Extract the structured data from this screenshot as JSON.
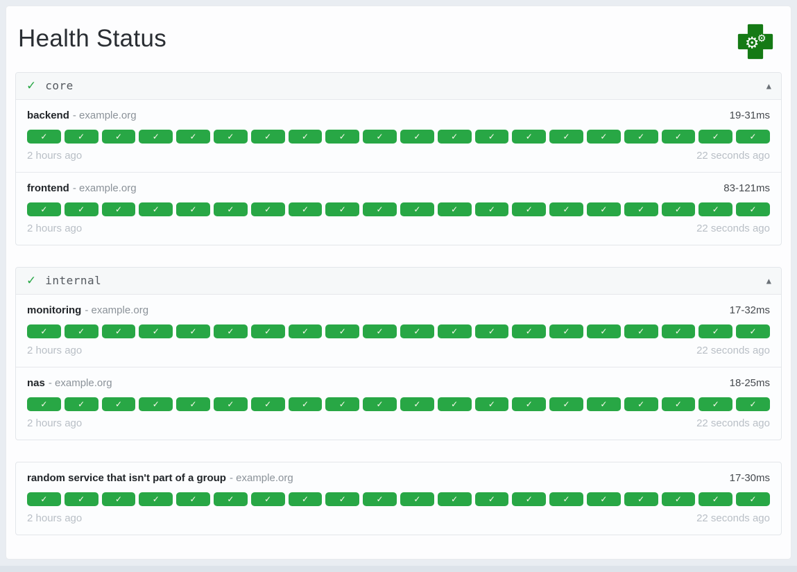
{
  "page": {
    "title": "Health Status"
  },
  "icons": {
    "logo": "health-cross-gears",
    "group_status": "✓",
    "collapse": "▲",
    "check": "✓",
    "gear": "⚙"
  },
  "colors": {
    "success_green": "#28a745",
    "logo_green": "#157a15",
    "page_background": "#e9edf2",
    "group_header_background": "#f6f8f9",
    "muted_text": "#b9bfc6"
  },
  "groups": [
    {
      "label": "core",
      "services": [
        {
          "name": "backend",
          "host": "- example.org",
          "response_time": "19-31ms",
          "oldest": "2 hours ago",
          "newest": "22 seconds ago",
          "checks": 20
        },
        {
          "name": "frontend",
          "host": "- example.org",
          "response_time": "83-121ms",
          "oldest": "2 hours ago",
          "newest": "22 seconds ago",
          "checks": 20
        }
      ]
    },
    {
      "label": "internal",
      "services": [
        {
          "name": "monitoring",
          "host": "- example.org",
          "response_time": "17-32ms",
          "oldest": "2 hours ago",
          "newest": "22 seconds ago",
          "checks": 20
        },
        {
          "name": "nas",
          "host": "- example.org",
          "response_time": "18-25ms",
          "oldest": "2 hours ago",
          "newest": "22 seconds ago",
          "checks": 20
        }
      ]
    },
    {
      "label": null,
      "services": [
        {
          "name": "random service that isn't part of a group",
          "host": "- example.org",
          "response_time": "17-30ms",
          "oldest": "2 hours ago",
          "newest": "22 seconds ago",
          "checks": 20
        }
      ]
    }
  ]
}
